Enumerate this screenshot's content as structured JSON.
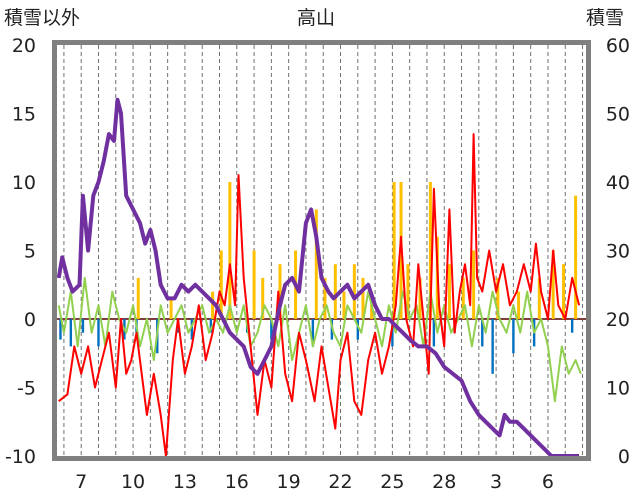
{
  "chart_data": {
    "type": "line",
    "title": "高山",
    "left_axis_label": "積雪以外",
    "right_axis_label": "積雪",
    "left_ylim": [
      -10,
      20
    ],
    "left_yticks": [
      "20",
      "15",
      "10",
      "5",
      "0",
      "-5",
      "-10"
    ],
    "right_ylim": [
      0,
      60
    ],
    "right_yticks": [
      "60",
      "50",
      "40",
      "30",
      "20",
      "10",
      "0"
    ],
    "x_range_days": [
      5.6,
      36.2
    ],
    "x_ticks": [
      {
        "label": "7",
        "day": 7
      },
      {
        "label": "10",
        "day": 10
      },
      {
        "label": "13",
        "day": 13
      },
      {
        "label": "16",
        "day": 16
      },
      {
        "label": "19",
        "day": 19
      },
      {
        "label": "22",
        "day": 22
      },
      {
        "label": "25",
        "day": 25
      },
      {
        "label": "28",
        "day": 28
      },
      {
        "label": "3",
        "day": 31
      },
      {
        "label": "6",
        "day": 34
      }
    ],
    "colors": {
      "temperature": "#ff0000",
      "precipitation": "#ffc000",
      "wind": "#92d050",
      "pressure_change": "#0070c0",
      "snow_depth": "#7030a0",
      "frame": "#808080"
    },
    "series": [
      {
        "name": "temperature",
        "axis": "left",
        "points": [
          [
            5.7,
            -6
          ],
          [
            6.2,
            -5.5
          ],
          [
            6.6,
            -2
          ],
          [
            7.0,
            -4
          ],
          [
            7.4,
            -2
          ],
          [
            7.8,
            -5
          ],
          [
            8.2,
            -3
          ],
          [
            8.6,
            -1
          ],
          [
            9.0,
            -5
          ],
          [
            9.3,
            0
          ],
          [
            9.6,
            -4
          ],
          [
            9.9,
            -3
          ],
          [
            10.2,
            -1
          ],
          [
            10.5,
            -4
          ],
          [
            10.8,
            -7
          ],
          [
            11.2,
            -4
          ],
          [
            11.6,
            -7
          ],
          [
            11.9,
            -10
          ],
          [
            12.3,
            -3
          ],
          [
            12.6,
            0
          ],
          [
            13.0,
            -4
          ],
          [
            13.4,
            -2
          ],
          [
            13.8,
            1
          ],
          [
            14.2,
            -3
          ],
          [
            14.6,
            -1
          ],
          [
            15.0,
            2
          ],
          [
            15.3,
            1
          ],
          [
            15.6,
            4
          ],
          [
            15.9,
            1
          ],
          [
            16.1,
            10.5
          ],
          [
            16.4,
            3
          ],
          [
            16.8,
            -2
          ],
          [
            17.2,
            -7
          ],
          [
            17.6,
            -3
          ],
          [
            18.0,
            -5
          ],
          [
            18.4,
            2
          ],
          [
            18.8,
            -4
          ],
          [
            19.2,
            -6
          ],
          [
            19.6,
            -1
          ],
          [
            20.0,
            -3
          ],
          [
            20.5,
            -6
          ],
          [
            20.9,
            -2
          ],
          [
            21.3,
            -5
          ],
          [
            21.7,
            -8
          ],
          [
            22.0,
            -3
          ],
          [
            22.4,
            -1
          ],
          [
            22.8,
            -6
          ],
          [
            23.2,
            -7
          ],
          [
            23.6,
            -3
          ],
          [
            24.0,
            -1
          ],
          [
            24.4,
            -4
          ],
          [
            24.8,
            -2
          ],
          [
            25.2,
            1
          ],
          [
            25.5,
            6
          ],
          [
            25.8,
            0
          ],
          [
            26.2,
            -2
          ],
          [
            26.5,
            4
          ],
          [
            26.8,
            0
          ],
          [
            27.1,
            -4
          ],
          [
            27.4,
            9.5
          ],
          [
            27.7,
            1
          ],
          [
            28.0,
            -2
          ],
          [
            28.3,
            8
          ],
          [
            28.6,
            -1
          ],
          [
            28.9,
            2
          ],
          [
            29.2,
            4
          ],
          [
            29.5,
            1
          ],
          [
            29.7,
            13.5
          ],
          [
            29.9,
            3
          ],
          [
            30.2,
            2
          ],
          [
            30.6,
            5
          ],
          [
            31.0,
            2
          ],
          [
            31.4,
            4
          ],
          [
            31.8,
            1
          ],
          [
            32.2,
            2
          ],
          [
            32.6,
            4
          ],
          [
            33.0,
            2
          ],
          [
            33.3,
            5.5
          ],
          [
            33.6,
            2
          ],
          [
            34.0,
            0
          ],
          [
            34.3,
            5
          ],
          [
            34.6,
            1
          ],
          [
            35.0,
            0
          ],
          [
            35.4,
            3
          ],
          [
            35.8,
            1
          ]
        ]
      },
      {
        "name": "wind",
        "axis": "left",
        "points": [
          [
            5.7,
            1
          ],
          [
            6.0,
            -1
          ],
          [
            6.4,
            2
          ],
          [
            6.8,
            -2
          ],
          [
            7.2,
            3
          ],
          [
            7.6,
            -1
          ],
          [
            8.0,
            1
          ],
          [
            8.4,
            -2
          ],
          [
            8.8,
            2
          ],
          [
            9.2,
            0
          ],
          [
            9.6,
            -1
          ],
          [
            10.0,
            1
          ],
          [
            10.4,
            -2
          ],
          [
            10.8,
            0
          ],
          [
            11.2,
            -3
          ],
          [
            11.6,
            1
          ],
          [
            12.0,
            -1
          ],
          [
            12.4,
            0
          ],
          [
            12.8,
            1
          ],
          [
            13.2,
            -1
          ],
          [
            13.6,
            0
          ],
          [
            14.0,
            1
          ],
          [
            14.4,
            -1
          ],
          [
            14.8,
            0
          ],
          [
            15.2,
            -1
          ],
          [
            15.6,
            1
          ],
          [
            16.0,
            -1
          ],
          [
            16.4,
            1
          ],
          [
            16.8,
            -2
          ],
          [
            17.2,
            -1
          ],
          [
            17.6,
            1
          ],
          [
            18.0,
            0
          ],
          [
            18.4,
            -2
          ],
          [
            18.8,
            1
          ],
          [
            19.2,
            -3
          ],
          [
            19.6,
            -1
          ],
          [
            20.0,
            1
          ],
          [
            20.4,
            -2
          ],
          [
            20.8,
            0
          ],
          [
            21.2,
            1
          ],
          [
            21.6,
            -1
          ],
          [
            22.0,
            -2
          ],
          [
            22.4,
            1
          ],
          [
            22.8,
            0
          ],
          [
            23.2,
            -1
          ],
          [
            23.6,
            2
          ],
          [
            24.0,
            0
          ],
          [
            24.4,
            -2
          ],
          [
            24.8,
            1
          ],
          [
            25.2,
            -1
          ],
          [
            25.6,
            2
          ],
          [
            26.0,
            0
          ],
          [
            26.4,
            1
          ],
          [
            26.8,
            -2
          ],
          [
            27.2,
            2
          ],
          [
            27.6,
            -1
          ],
          [
            28.0,
            1
          ],
          [
            28.4,
            -1
          ],
          [
            28.8,
            0
          ],
          [
            29.2,
            1
          ],
          [
            29.6,
            -2
          ],
          [
            30.0,
            1
          ],
          [
            30.4,
            -1
          ],
          [
            30.8,
            2
          ],
          [
            31.2,
            0
          ],
          [
            31.6,
            -1
          ],
          [
            32.0,
            1
          ],
          [
            32.4,
            -1
          ],
          [
            32.8,
            2
          ],
          [
            33.2,
            -1
          ],
          [
            33.6,
            0
          ],
          [
            34.0,
            -2
          ],
          [
            34.4,
            -6
          ],
          [
            34.8,
            -2
          ],
          [
            35.2,
            -4
          ],
          [
            35.6,
            -3
          ],
          [
            35.9,
            -4
          ]
        ]
      },
      {
        "name": "snow_depth",
        "axis": "right",
        "points": [
          [
            5.7,
            26
          ],
          [
            5.9,
            29
          ],
          [
            6.2,
            26
          ],
          [
            6.5,
            24
          ],
          [
            6.9,
            25
          ],
          [
            7.1,
            38
          ],
          [
            7.4,
            30
          ],
          [
            7.7,
            38
          ],
          [
            8.0,
            40
          ],
          [
            8.3,
            43
          ],
          [
            8.6,
            47
          ],
          [
            8.9,
            46
          ],
          [
            9.1,
            52
          ],
          [
            9.3,
            50
          ],
          [
            9.6,
            38
          ],
          [
            10.0,
            36
          ],
          [
            10.4,
            34
          ],
          [
            10.7,
            31
          ],
          [
            11.0,
            33
          ],
          [
            11.3,
            30
          ],
          [
            11.6,
            25
          ],
          [
            12.0,
            23
          ],
          [
            12.4,
            23
          ],
          [
            12.8,
            25
          ],
          [
            13.2,
            24
          ],
          [
            13.6,
            25
          ],
          [
            14.0,
            24
          ],
          [
            14.4,
            23
          ],
          [
            14.8,
            22
          ],
          [
            15.2,
            20
          ],
          [
            15.6,
            18
          ],
          [
            16.0,
            17
          ],
          [
            16.4,
            16
          ],
          [
            16.8,
            13
          ],
          [
            17.2,
            12
          ],
          [
            17.6,
            14
          ],
          [
            18.0,
            16
          ],
          [
            18.4,
            21
          ],
          [
            18.8,
            25
          ],
          [
            19.2,
            26
          ],
          [
            19.6,
            24
          ],
          [
            20.0,
            34
          ],
          [
            20.3,
            36
          ],
          [
            20.6,
            32
          ],
          [
            20.9,
            26
          ],
          [
            21.3,
            24
          ],
          [
            21.6,
            23
          ],
          [
            22.0,
            24
          ],
          [
            22.4,
            25
          ],
          [
            22.8,
            23
          ],
          [
            23.2,
            24
          ],
          [
            23.6,
            25
          ],
          [
            24.0,
            22
          ],
          [
            24.4,
            20
          ],
          [
            24.8,
            20
          ],
          [
            25.2,
            19
          ],
          [
            25.6,
            18
          ],
          [
            26.0,
            17
          ],
          [
            26.5,
            16
          ],
          [
            27.0,
            16
          ],
          [
            27.5,
            15
          ],
          [
            28.0,
            13
          ],
          [
            28.5,
            12
          ],
          [
            29.0,
            11
          ],
          [
            29.5,
            8
          ],
          [
            30.0,
            6
          ],
          [
            30.4,
            5
          ],
          [
            30.8,
            4
          ],
          [
            31.2,
            3
          ],
          [
            31.5,
            6
          ],
          [
            31.8,
            5
          ],
          [
            32.2,
            5
          ],
          [
            32.6,
            4
          ],
          [
            33.0,
            3
          ],
          [
            33.4,
            2
          ],
          [
            33.8,
            1
          ],
          [
            34.2,
            0
          ],
          [
            34.6,
            0
          ],
          [
            35.2,
            0
          ],
          [
            35.8,
            0
          ]
        ]
      }
    ],
    "precipitation_bars": [
      [
        10.3,
        3
      ],
      [
        12.2,
        1.5
      ],
      [
        14.6,
        2
      ],
      [
        15.1,
        5
      ],
      [
        15.6,
        10
      ],
      [
        17.0,
        5
      ],
      [
        17.5,
        3
      ],
      [
        18.5,
        4
      ],
      [
        19.4,
        5
      ],
      [
        20.6,
        8
      ],
      [
        21.1,
        3
      ],
      [
        21.7,
        4
      ],
      [
        22.2,
        2
      ],
      [
        22.8,
        4
      ],
      [
        23.3,
        3
      ],
      [
        23.8,
        2
      ],
      [
        25.1,
        10
      ],
      [
        25.5,
        10
      ],
      [
        25.9,
        4
      ],
      [
        26.6,
        3
      ],
      [
        27.2,
        10
      ],
      [
        27.6,
        6
      ],
      [
        28.3,
        4
      ],
      [
        29.1,
        3
      ],
      [
        29.7,
        5
      ],
      [
        31.1,
        3
      ],
      [
        32.3,
        2
      ],
      [
        33.5,
        3
      ],
      [
        34.3,
        5
      ],
      [
        34.9,
        4
      ],
      [
        35.6,
        9
      ]
    ],
    "pressure_bars": [
      [
        5.8,
        -1.5
      ],
      [
        6.4,
        -2
      ],
      [
        7.1,
        -1
      ],
      [
        8.0,
        -2
      ],
      [
        9.5,
        -1.5
      ],
      [
        10.2,
        -1
      ],
      [
        11.4,
        -2.5
      ],
      [
        12.6,
        -1
      ],
      [
        13.4,
        -1.5
      ],
      [
        14.5,
        -1
      ],
      [
        16.6,
        -1
      ],
      [
        18.0,
        -1.5
      ],
      [
        20.4,
        -2
      ],
      [
        21.5,
        -1.5
      ],
      [
        23.0,
        -1.5
      ],
      [
        25.0,
        -2
      ],
      [
        27.4,
        -2
      ],
      [
        28.6,
        -1
      ],
      [
        30.2,
        -2
      ],
      [
        30.8,
        -4
      ],
      [
        32.0,
        -2.5
      ],
      [
        33.2,
        -2
      ],
      [
        35.4,
        -1
      ]
    ]
  }
}
